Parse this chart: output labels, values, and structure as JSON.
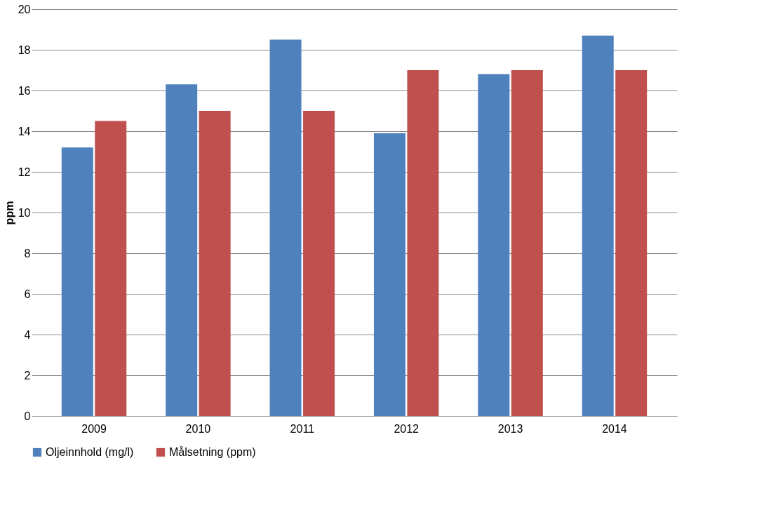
{
  "chart_data": {
    "type": "bar",
    "ylabel": "ppm",
    "categories": [
      "2009",
      "2010",
      "2011",
      "2012",
      "2013",
      "2014"
    ],
    "series": [
      {
        "name": "Oljeinnhold (mg/l)",
        "color": "#4f81bd",
        "values": [
          13.2,
          16.3,
          18.5,
          13.9,
          16.8,
          18.7
        ]
      },
      {
        "name": "Målsetning (ppm)",
        "color": "#c0504d",
        "values": [
          14.5,
          15,
          15,
          17,
          17,
          17
        ]
      }
    ],
    "ylim": [
      0,
      20
    ],
    "yticks": [
      0,
      2,
      4,
      6,
      8,
      10,
      12,
      14,
      16,
      18,
      20
    ],
    "grid": "y",
    "legend": "bottom"
  }
}
